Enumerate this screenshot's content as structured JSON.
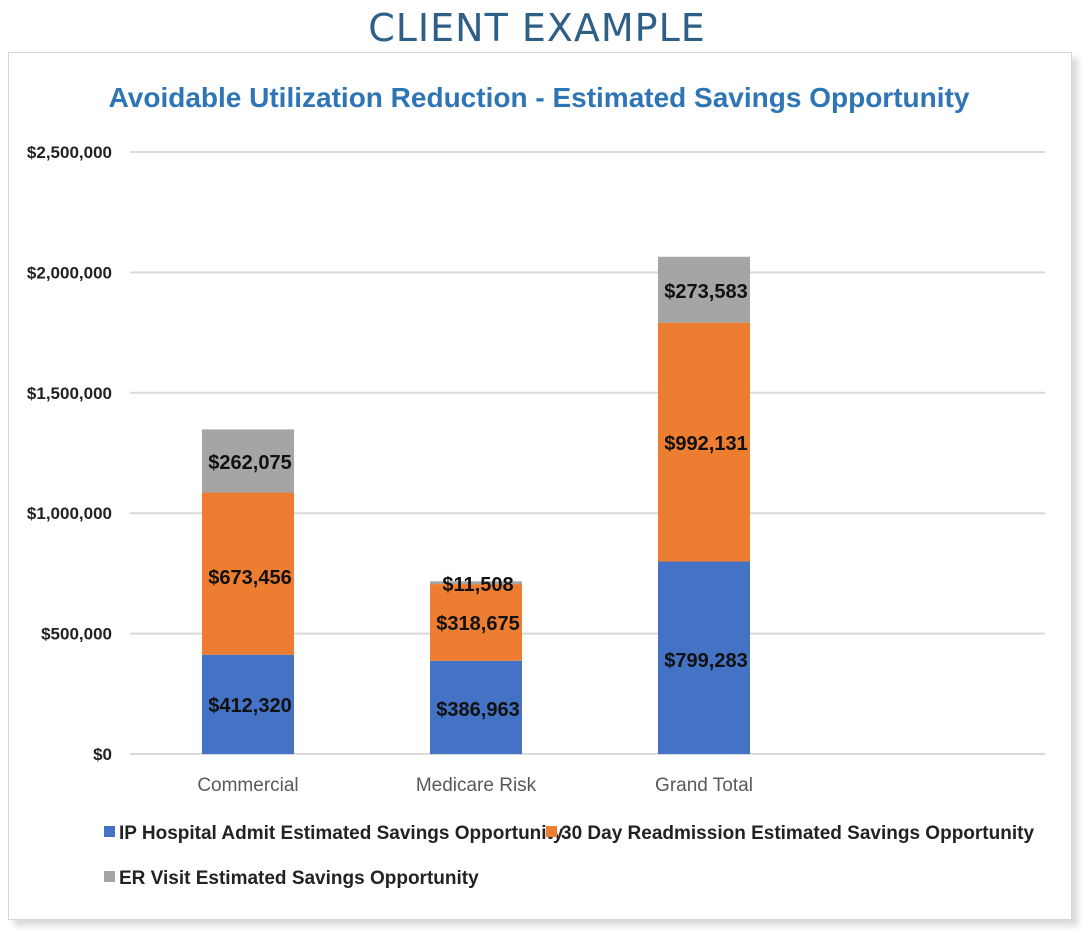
{
  "header": {
    "title": "CLIENT EXAMPLE"
  },
  "chart_data": {
    "type": "bar",
    "stacked": true,
    "title": "Avoidable Utilization Reduction - Estimated Savings Opportunity",
    "categories": [
      "Commercial",
      "Medicare Risk",
      "Grand Total"
    ],
    "series": [
      {
        "name": "IP Hospital Admit Estimated Savings Opportunity",
        "color": "#4472c4",
        "values": [
          412320,
          386963,
          799283
        ],
        "labels": [
          "$412,320",
          "$386,963",
          "$799,283"
        ]
      },
      {
        "name": "30 Day Readmission Estimated Savings Opportunity",
        "color": "#ed7d31",
        "values": [
          673456,
          318675,
          992131
        ],
        "labels": [
          "$673,456",
          "$318,675",
          "$992,131"
        ]
      },
      {
        "name": "ER Visit Estimated Savings Opportunity",
        "color": "#a5a5a5",
        "values": [
          262075,
          11508,
          273583
        ],
        "labels": [
          "$262,075",
          "$11,508",
          "$273,583"
        ]
      }
    ],
    "ylim": [
      0,
      2500000
    ],
    "yticks": [
      0,
      500000,
      1000000,
      1500000,
      2000000,
      2500000
    ],
    "ytick_labels": [
      "$0",
      "$500,000",
      "$1,000,000",
      "$1,500,000",
      "$2,000,000",
      "$2,500,000"
    ],
    "grid": true,
    "legend_position": "bottom"
  }
}
